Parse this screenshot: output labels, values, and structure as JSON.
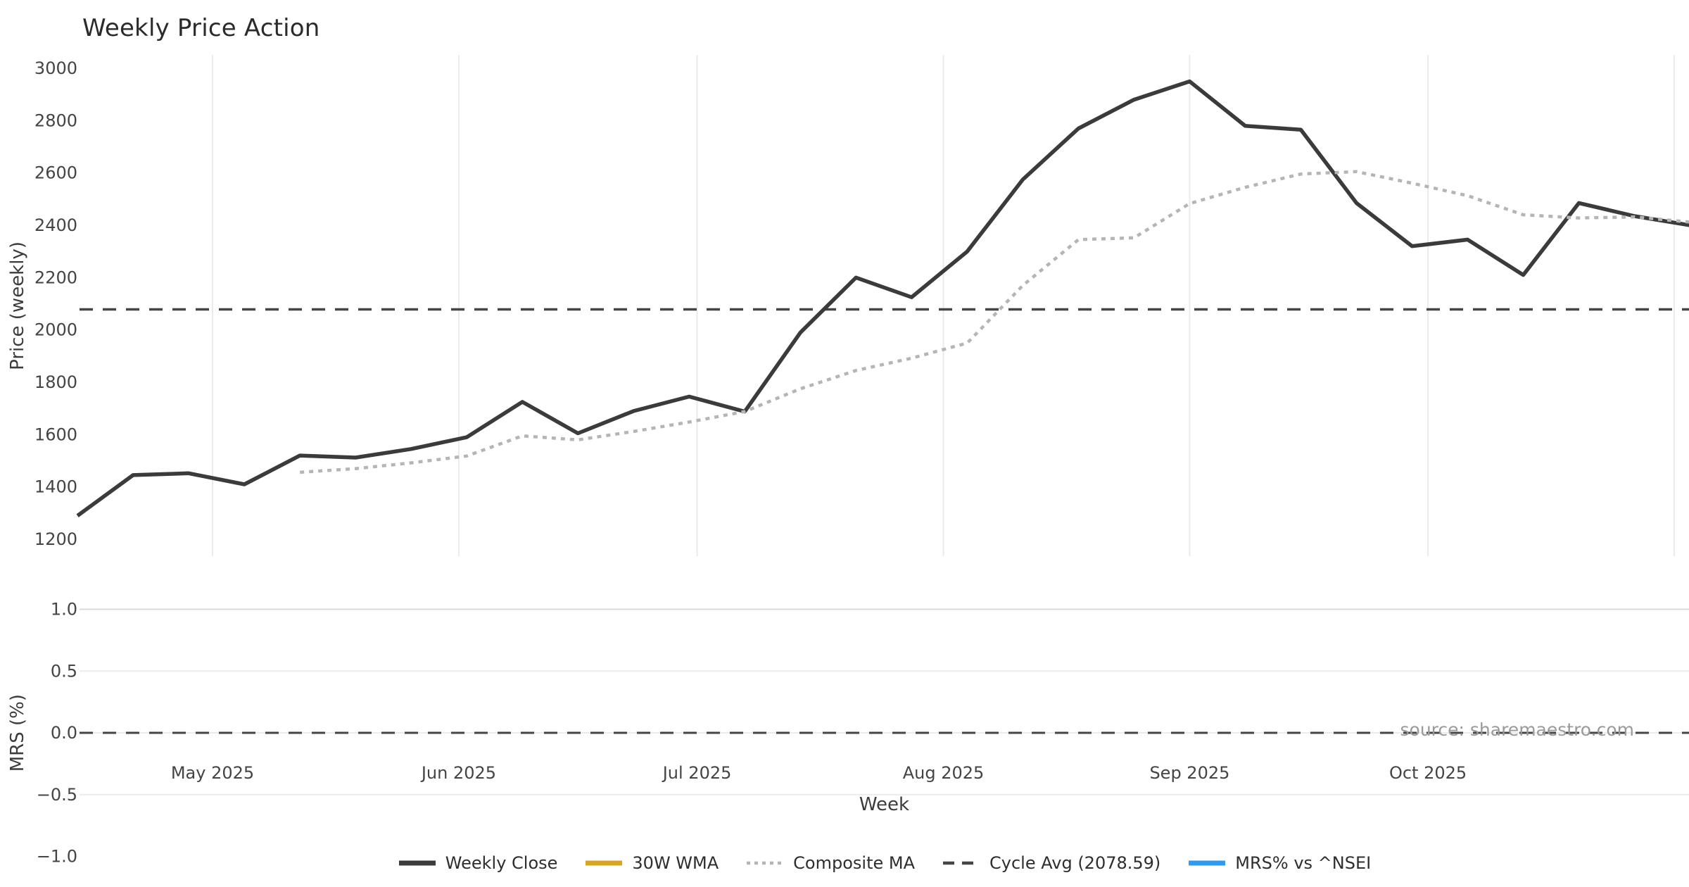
{
  "title": "Weekly Price Action",
  "source_note": "source: sharemaestro.com",
  "colors": {
    "weekly_close": "#3b3b3b",
    "wma_30w": "#d9a520",
    "composite_ma": "#b5b5b5",
    "cycle_avg": "#454545",
    "mrs": "#2e9bf0",
    "gridline": "#ebebeb",
    "gridline_strong": "#d9d9d9",
    "tick_text": "#444444"
  },
  "legend": {
    "items": [
      {
        "label": "Weekly Close",
        "color": "#3b3b3b",
        "style": "solid"
      },
      {
        "label": "30W WMA",
        "color": "#d9a520",
        "style": "solid"
      },
      {
        "label": "Composite MA",
        "color": "#b5b5b5",
        "style": "dotted"
      },
      {
        "label": "Cycle Avg (2078.59)",
        "color": "#454545",
        "style": "dashed"
      },
      {
        "label": "MRS% vs ^NSEI",
        "color": "#2e9bf0",
        "style": "solid"
      }
    ]
  },
  "chart_data": [
    {
      "type": "line",
      "title": "Weekly Price Action",
      "xlabel": "Week",
      "ylabel": "Price (weekly)",
      "grid": "vertical-only",
      "ylim": [
        1140,
        3050
      ],
      "y_ticks": [
        3000,
        2800,
        2600,
        2400,
        2200,
        2000,
        1800,
        1600,
        1400,
        1200
      ],
      "x_ticks": [
        {
          "date": "2025-05-01",
          "label": "May 2025"
        },
        {
          "date": "2025-06-01",
          "label": "Jun 2025"
        },
        {
          "date": "2025-07-01",
          "label": "Jul 2025"
        },
        {
          "date": "2025-08-01",
          "label": "Aug 2025"
        },
        {
          "date": "2025-09-01",
          "label": "Sep 2025"
        },
        {
          "date": "2025-10-01",
          "label": "Oct 2025"
        },
        {
          "date": "2025-11-01",
          "label": ""
        }
      ],
      "x": [
        "2025-04-14",
        "2025-04-21",
        "2025-04-28",
        "2025-05-05",
        "2025-05-12",
        "2025-05-19",
        "2025-05-26",
        "2025-06-02",
        "2025-06-09",
        "2025-06-16",
        "2025-06-23",
        "2025-06-30",
        "2025-07-07",
        "2025-07-14",
        "2025-07-21",
        "2025-07-28",
        "2025-08-04",
        "2025-08-11",
        "2025-08-18",
        "2025-08-25",
        "2025-09-01",
        "2025-09-08",
        "2025-09-15",
        "2025-09-22",
        "2025-09-29",
        "2025-10-06",
        "2025-10-13",
        "2025-10-20",
        "2025-10-27",
        "2025-11-03"
      ],
      "series": [
        {
          "name": "Weekly Close",
          "color": "#3b3b3b",
          "style": "solid",
          "width": 5.5,
          "values": [
            1290,
            1445,
            1452,
            1410,
            1520,
            1512,
            1545,
            1590,
            1725,
            1605,
            1690,
            1745,
            1688,
            1990,
            2200,
            2125,
            2300,
            2575,
            2770,
            2880,
            2950,
            2780,
            2765,
            2485,
            2320,
            2345,
            2210,
            2485,
            2435,
            2400
          ]
        },
        {
          "name": "30W WMA",
          "color": "#d9a520",
          "style": "solid",
          "width": 5.5,
          "values": []
        },
        {
          "name": "Composite MA",
          "color": "#b5b5b5",
          "style": "dotted",
          "width": 4.5,
          "values": [
            null,
            null,
            null,
            null,
            1456,
            1470,
            1492,
            1518,
            1595,
            1580,
            1612,
            1648,
            1688,
            1775,
            1845,
            1892,
            1950,
            2170,
            2345,
            2352,
            2483,
            2545,
            2596,
            2605,
            2561,
            2513,
            2440,
            2428,
            2432,
            2412
          ]
        }
      ],
      "reference_lines": [
        {
          "name": "Cycle Avg",
          "value": 2078.59,
          "color": "#454545",
          "style": "dashed"
        }
      ]
    },
    {
      "type": "line",
      "xlabel": "Week",
      "ylabel": "MRS (%)",
      "grid": "horizontal-only",
      "ylim": [
        -1.08,
        1.08
      ],
      "y_ticks": [
        1.0,
        0.5,
        0.0,
        -0.5,
        -1.0
      ],
      "y_tick_labels": [
        "1.0",
        "0.5",
        "0.0",
        "−0.5",
        "−1.0"
      ],
      "series": [
        {
          "name": "MRS% vs ^NSEI",
          "color": "#2e9bf0",
          "style": "solid",
          "width": 5,
          "values": []
        }
      ],
      "reference_lines": [
        {
          "name": "zero",
          "value": 0.0,
          "color": "#454545",
          "style": "dashed"
        }
      ]
    }
  ]
}
